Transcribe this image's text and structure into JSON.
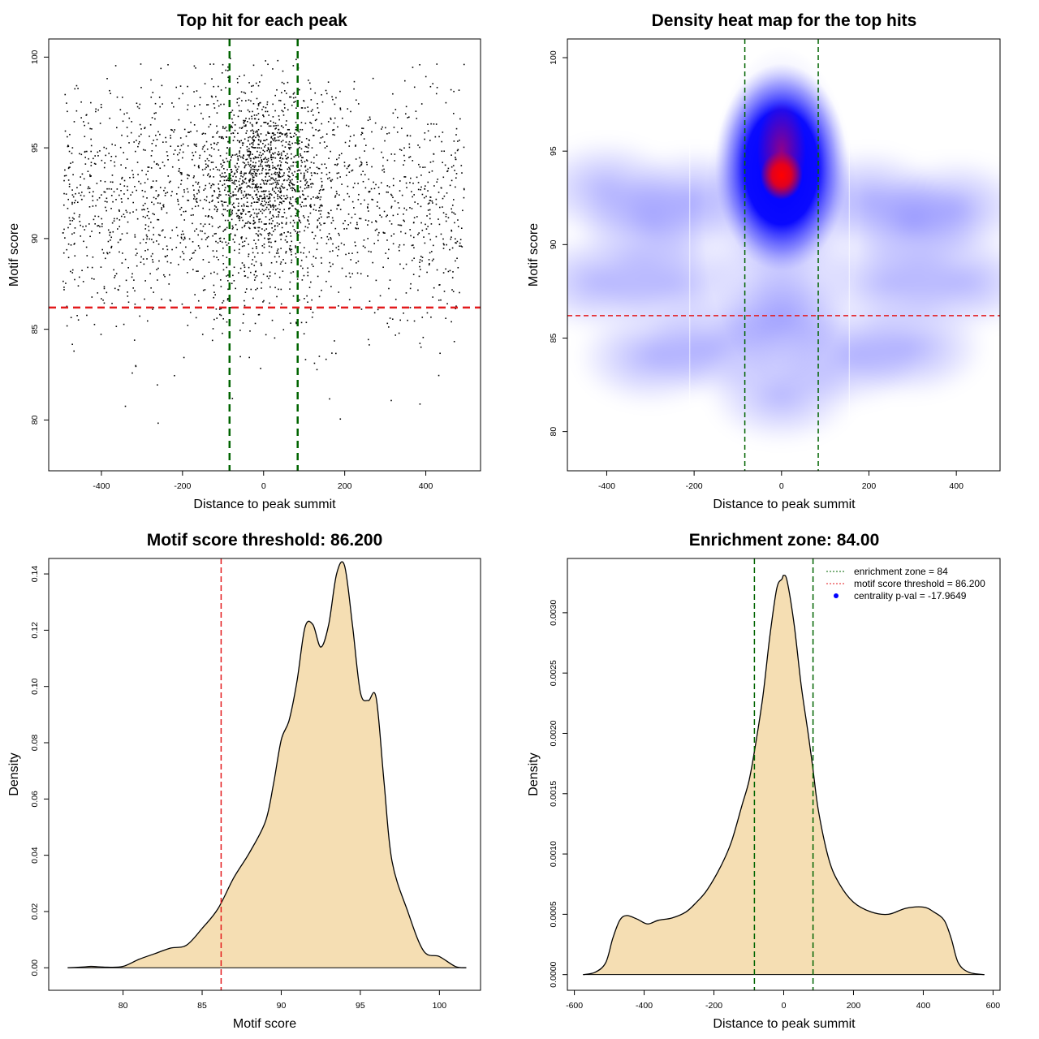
{
  "colors": {
    "points": "#000000",
    "enrichment_line": "#006400",
    "threshold_line": "#e31a1c",
    "density_fill": "#f5deb3",
    "density_outline": "#000000",
    "heat_low": "#ffffff",
    "heat_mid": "#0000ff",
    "heat_high": "#ff0000",
    "legend_point": "#0000ff"
  },
  "chart_data": [
    {
      "type": "scatter",
      "title": "Top hit for each peak",
      "xlabel": "Distance to peak summit",
      "ylabel": "Motif score",
      "xlim": [
        -530,
        535
      ],
      "ylim": [
        77.2,
        101.0
      ],
      "xticks": [
        -400,
        -200,
        0,
        200,
        400
      ],
      "yticks": [
        80,
        85,
        90,
        95,
        100
      ],
      "xtick_labels": [
        "-400",
        "-200",
        "0",
        "200",
        "400"
      ],
      "ytick_labels": [
        "80",
        "85",
        "90",
        "95",
        "100"
      ],
      "vlines": [
        -84,
        84
      ],
      "hline": 86.2,
      "point_count": 3000,
      "distribution": {
        "central_fraction": 0.38,
        "central_x_sd": 80,
        "central_y_mean": 93.5,
        "central_y_sd": 2.4,
        "background_x_range": [
          -495,
          495
        ],
        "background_y_mean": 92.0,
        "background_y_sd": 3.6
      }
    },
    {
      "type": "heatmap",
      "title": "Density heat map for the top hits",
      "xlabel": "Distance to peak summit",
      "ylabel": "Motif score",
      "xlim": [
        -490,
        500
      ],
      "ylim": [
        77.9,
        101.0
      ],
      "xticks": [
        -400,
        -200,
        0,
        200,
        400
      ],
      "yticks": [
        80,
        85,
        90,
        95,
        100
      ],
      "xtick_labels": [
        "-400",
        "-200",
        "0",
        "200",
        "400"
      ],
      "ytick_labels": [
        "80",
        "85",
        "90",
        "95",
        "100"
      ],
      "vlines": [
        -84,
        84
      ],
      "hline": 86.2,
      "peak": {
        "x": 0,
        "y": 93.7
      }
    },
    {
      "type": "area",
      "title": "Motif score threshold: 86.200",
      "xlabel": "Motif score",
      "ylabel": "Density",
      "xlim": [
        75.3,
        102.6
      ],
      "ylim": [
        -0.008,
        0.1455
      ],
      "xticks": [
        80,
        85,
        90,
        95,
        100
      ],
      "yticks": [
        0.0,
        0.02,
        0.04,
        0.06,
        0.08,
        0.1,
        0.12,
        0.14
      ],
      "xtick_labels": [
        "80",
        "85",
        "90",
        "95",
        "100"
      ],
      "ytick_labels": [
        "0.00",
        "0.02",
        "0.04",
        "0.06",
        "0.08",
        "0.10",
        "0.12",
        "0.14"
      ],
      "vline": 86.2,
      "x": [
        76.5,
        77.5,
        78.0,
        79.0,
        80.0,
        81.0,
        82.0,
        83.0,
        84.0,
        85.0,
        86.0,
        87.0,
        88.0,
        89.0,
        89.5,
        90.0,
        90.5,
        91.0,
        91.5,
        92.0,
        92.5,
        93.0,
        93.5,
        94.0,
        94.5,
        95.0,
        95.5,
        96.0,
        96.5,
        97.0,
        98.0,
        99.0,
        100.0,
        101.0,
        101.7
      ],
      "y": [
        0.0,
        0.0003,
        0.0005,
        0.0002,
        0.0005,
        0.003,
        0.005,
        0.007,
        0.008,
        0.014,
        0.021,
        0.032,
        0.041,
        0.052,
        0.065,
        0.081,
        0.088,
        0.102,
        0.121,
        0.122,
        0.114,
        0.122,
        0.14,
        0.143,
        0.122,
        0.098,
        0.095,
        0.096,
        0.066,
        0.038,
        0.02,
        0.006,
        0.004,
        0.0005,
        0.0
      ]
    },
    {
      "type": "area",
      "title": "Enrichment zone: 84.00",
      "xlabel": "Distance to peak summit",
      "ylabel": "Density",
      "xlim": [
        -620,
        620
      ],
      "ylim": [
        -0.00013,
        0.00345
      ],
      "xticks": [
        -600,
        -400,
        -200,
        0,
        200,
        400,
        600
      ],
      "yticks": [
        0.0,
        0.0005,
        0.001,
        0.0015,
        0.002,
        0.0025,
        0.003
      ],
      "xtick_labels": [
        "-600",
        "-400",
        "-200",
        "0",
        "200",
        "400",
        "600"
      ],
      "ytick_labels": [
        "0.0000",
        "0.0005",
        "0.0010",
        "0.0015",
        "0.0020",
        "0.0025",
        "0.0030"
      ],
      "vlines": [
        -84,
        84
      ],
      "x": [
        -575,
        -540,
        -510,
        -490,
        -470,
        -450,
        -420,
        -390,
        -360,
        -320,
        -280,
        -250,
        -220,
        -180,
        -150,
        -120,
        -100,
        -84,
        -60,
        -40,
        -20,
        -5,
        0,
        10,
        30,
        50,
        70,
        84,
        100,
        130,
        160,
        200,
        250,
        300,
        350,
        400,
        430,
        460,
        480,
        500,
        530,
        575
      ],
      "y": [
        0.0,
        2e-05,
        0.0001,
        0.0003,
        0.00045,
        0.00049,
        0.00046,
        0.00042,
        0.00045,
        0.00047,
        0.00052,
        0.0006,
        0.0007,
        0.0009,
        0.0011,
        0.0014,
        0.0016,
        0.00185,
        0.0023,
        0.0028,
        0.0032,
        0.00328,
        0.00331,
        0.00326,
        0.0029,
        0.0024,
        0.002,
        0.0017,
        0.00135,
        0.00095,
        0.00075,
        0.0006,
        0.00052,
        0.0005,
        0.00055,
        0.00056,
        0.00052,
        0.00045,
        0.0003,
        0.0001,
        2e-05,
        0.0
      ],
      "legend": {
        "position": "top-right",
        "entries": [
          {
            "label": "enrichment zone = 84",
            "symbol": "dotted-line",
            "color": "#006400"
          },
          {
            "label": "motif score threshold = 86.200",
            "symbol": "dotted-line",
            "color": "#e31a1c"
          },
          {
            "label": "centrality p-val = -17.9649",
            "symbol": "point",
            "color": "#0000ff"
          }
        ]
      }
    }
  ]
}
